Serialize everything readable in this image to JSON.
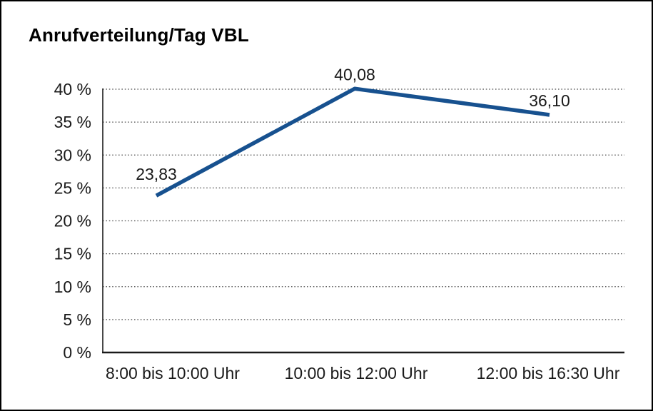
{
  "window": {
    "background_color": "#ffffff",
    "border_color": "#000000"
  },
  "chart_data": {
    "type": "line",
    "title": "Anrufverteilung/Tag VBL",
    "categories": [
      "8:00 bis 10:00 Uhr",
      "10:00 bis 12:00 Uhr",
      "12:00 bis 16:30 Uhr"
    ],
    "values": [
      23.83,
      40.08,
      36.1
    ],
    "value_labels": [
      "23,83",
      "40,08",
      "36,10"
    ],
    "ytick_values": [
      0,
      5,
      10,
      15,
      20,
      25,
      30,
      35,
      40
    ],
    "ytick_labels": [
      "0 %",
      "5 %",
      "10 %",
      "15 %",
      "20 %",
      "25 %",
      "30 %",
      "35 %",
      "40 %"
    ],
    "ylim": [
      0,
      40
    ],
    "xlabel": "",
    "ylabel": "",
    "grid": "horizontal-dotted",
    "legend": "none",
    "line_color": "#17518f",
    "axis_color": "#1a1a1a",
    "grid_color": "#4d4d4d"
  }
}
